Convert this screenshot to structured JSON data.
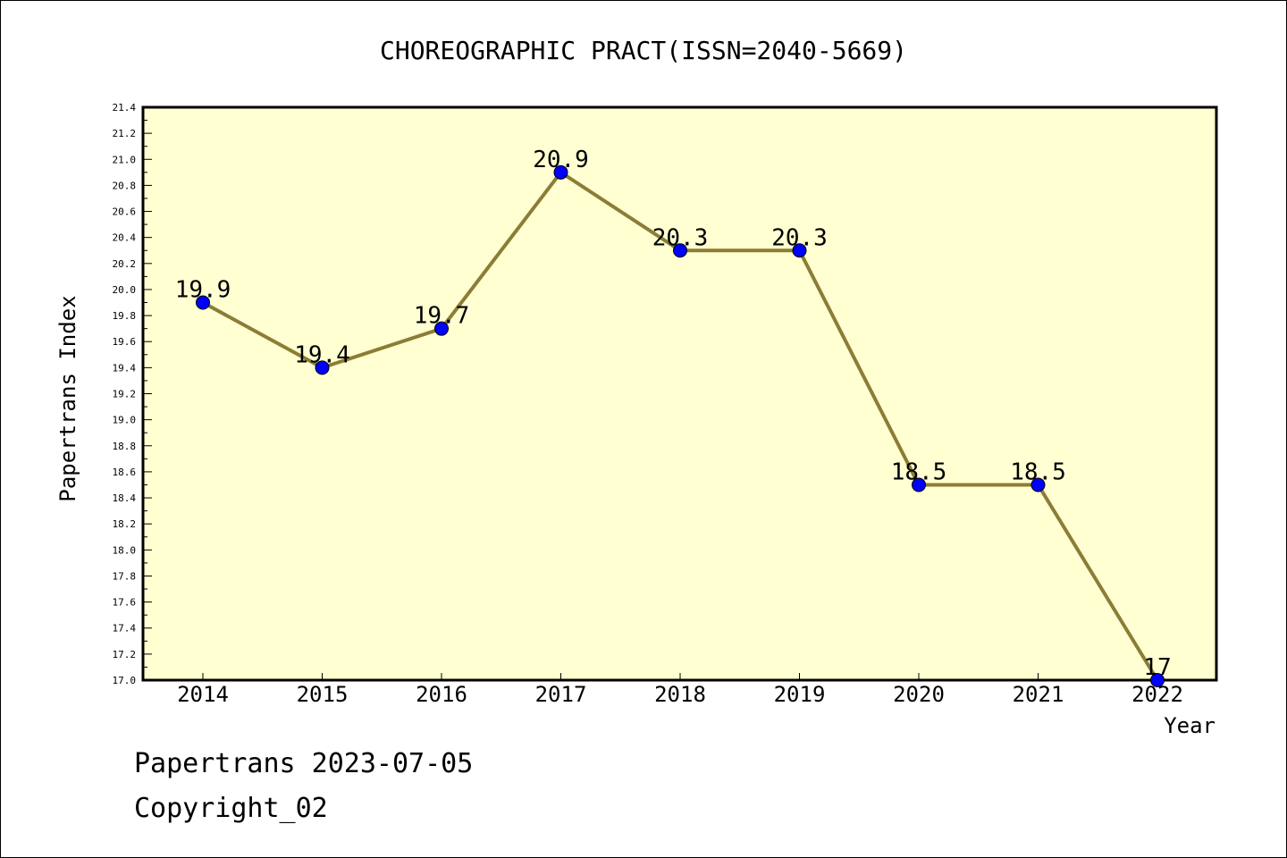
{
  "chart_data": {
    "type": "line",
    "title": "CHOREOGRAPHIC PRACT(ISSN=2040-5669)",
    "xlabel": "Year",
    "ylabel": "Papertrans Index",
    "categories": [
      "2014",
      "2015",
      "2016",
      "2017",
      "2018",
      "2019",
      "2020",
      "2021",
      "2022"
    ],
    "series": [
      {
        "values": [
          19.9,
          19.4,
          19.7,
          20.9,
          20.3,
          20.3,
          18.5,
          18.5,
          17.0
        ],
        "labels": [
          "19.9",
          "19.4",
          "19.7",
          "20.9",
          "20.3",
          "20.3",
          "18.5",
          "18.5",
          "17"
        ]
      }
    ],
    "ylim": [
      17.0,
      21.4
    ],
    "yticks": [
      "17.0",
      "17.2",
      "17.4",
      "17.6",
      "17.8",
      "18.0",
      "18.2",
      "18.4",
      "18.6",
      "18.8",
      "19.0",
      "19.2",
      "19.4",
      "19.6",
      "19.8",
      "20.0",
      "20.2",
      "20.4",
      "20.6",
      "20.8",
      "21.0",
      "21.2",
      "21.4"
    ],
    "grid": false,
    "colors": {
      "plot_background": "#ffffd2",
      "line": "#8b7d35",
      "marker": "#0000ff"
    }
  },
  "footer": {
    "date_line": "Papertrans 2023-07-05",
    "copyright": "Copyright_02"
  }
}
